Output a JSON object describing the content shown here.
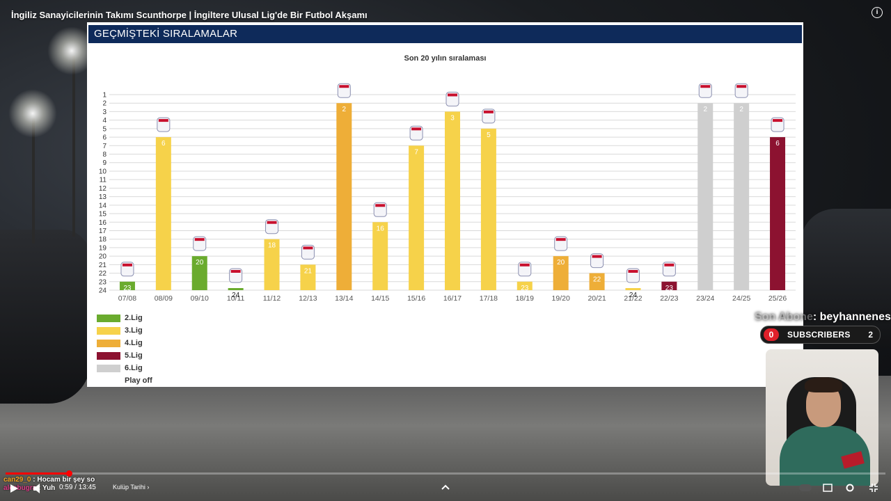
{
  "video": {
    "title": "İngiliz Sanayicilerinin Takımı Scunthorpe | İngiltere Ulusal Lig'de Bir Futbol Akşamı",
    "time": "0:59 / 13:45",
    "chapter": "Kulüp Tarihi",
    "progress_fraction": 0.072
  },
  "panel": {
    "header": "GEÇMİŞTEKİ SIRALAMALAR"
  },
  "chart_data": {
    "type": "bar",
    "title": "Son 20 yılın sıralaması",
    "y_inverted": true,
    "ylim": [
      1,
      24
    ],
    "y_ticks": [
      "1",
      "2",
      "3",
      "4",
      "5",
      "6",
      "7",
      "8",
      "9",
      "10",
      "11",
      "12",
      "13",
      "14",
      "15",
      "16",
      "17",
      "18",
      "19",
      "20",
      "21",
      "22",
      "23",
      "24"
    ],
    "categories": [
      "07/08",
      "08/09",
      "09/10",
      "10/11",
      "11/12",
      "12/13",
      "13/14",
      "14/15",
      "15/16",
      "16/17",
      "17/18",
      "18/19",
      "19/20",
      "20/21",
      "21/22",
      "22/23",
      "23/24",
      "24/25",
      "25/26"
    ],
    "values": [
      23,
      6,
      20,
      24,
      18,
      21,
      2,
      16,
      7,
      3,
      5,
      23,
      20,
      22,
      24,
      23,
      null,
      2,
      6
    ],
    "value_labels": [
      "23",
      "6",
      "20",
      "24",
      "18",
      "21",
      "2",
      "16",
      "7",
      "3",
      "5",
      "23",
      "20",
      "22",
      "24",
      "23",
      "",
      "2",
      "6"
    ],
    "leagues": [
      "2.Lig",
      "3.Lig",
      "2.Lig",
      "2.Lig",
      "3.Lig",
      "3.Lig",
      "4.Lig",
      "3.Lig",
      "3.Lig",
      "3.Lig",
      "3.Lig",
      "3.Lig",
      "4.Lig",
      "4.Lig",
      "3.Lig",
      "5.Lig",
      "",
      "6.Lig",
      "5.Lig"
    ],
    "bar_23_24": 2,
    "legend": [
      {
        "label": "2.Lig",
        "color": "#6aab2e"
      },
      {
        "label": "3.Lig",
        "color": "#f6d24a"
      },
      {
        "label": "4.Lig",
        "color": "#eeae38"
      },
      {
        "label": "5.Lig",
        "color": "#8c1230"
      },
      {
        "label": "6.Lig",
        "color": "#cfcfcf"
      },
      {
        "label": "Play off",
        "color": ""
      }
    ]
  },
  "overlay": {
    "subs_prefix": "Son Abone",
    "subs_name": ": beyhannenes",
    "subs_zero": "0",
    "subs_label": "SUBSCRIBERS",
    "subs_count": "2"
  },
  "chat": [
    {
      "user": "can29_0",
      "text": " : Hocam bir şey so"
    },
    {
      "user": "aleebugra",
      "text": " : Yuh"
    }
  ],
  "icons": [
    "info-icon",
    "play-icon",
    "volume-icon",
    "chevron-right-icon",
    "chevron-up-icon",
    "settings-icon",
    "fullscreen-exit-icon"
  ]
}
